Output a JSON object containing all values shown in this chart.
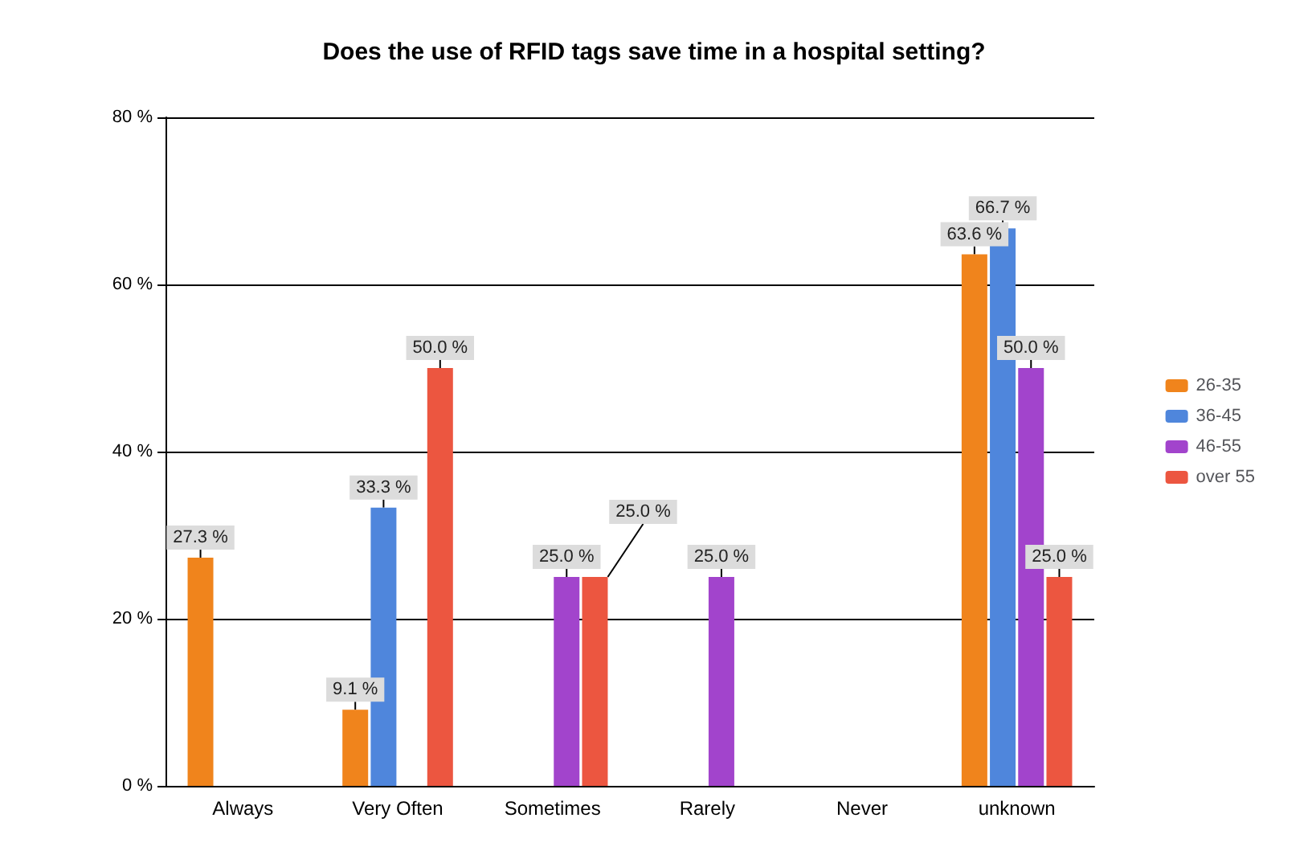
{
  "chart_data": {
    "type": "bar",
    "title": "Does the use of RFID tags save time in a hospital setting?",
    "categories": [
      "Always",
      "Very Often",
      "Sometimes",
      "Rarely",
      "Never",
      "unknown"
    ],
    "series": [
      {
        "name": "26-35",
        "color": "#f0841c",
        "values": [
          27.3,
          9.1,
          0,
          0,
          0,
          63.6
        ],
        "value_labels": [
          "27.3 %",
          "9.1 %",
          null,
          null,
          null,
          "63.6 %"
        ]
      },
      {
        "name": "36-45",
        "color": "#4f86dc",
        "values": [
          0,
          33.3,
          0,
          0,
          0,
          66.7
        ],
        "value_labels": [
          null,
          "33.3 %",
          null,
          null,
          null,
          "66.7 %"
        ]
      },
      {
        "name": "46-55",
        "color": "#a244cc",
        "values": [
          0,
          0,
          25.0,
          25.0,
          0,
          50.0
        ],
        "value_labels": [
          null,
          null,
          "25.0 %",
          "25.0 %",
          null,
          "50.0 %"
        ]
      },
      {
        "name": "over 55",
        "color": "#ec5640",
        "values": [
          0,
          50.0,
          25.0,
          0,
          0,
          25.0
        ],
        "value_labels": [
          null,
          "50.0 %",
          "25.0 %",
          null,
          null,
          "25.0 %"
        ]
      }
    ],
    "ylim": [
      0,
      80
    ],
    "yticks": [
      {
        "value": 0,
        "label": "0 %"
      },
      {
        "value": 20,
        "label": "20 %"
      },
      {
        "value": 40,
        "label": "40 %"
      },
      {
        "value": 60,
        "label": "60 %"
      },
      {
        "value": 80,
        "label": "80 %"
      }
    ],
    "grid": "y",
    "legend": "right"
  }
}
